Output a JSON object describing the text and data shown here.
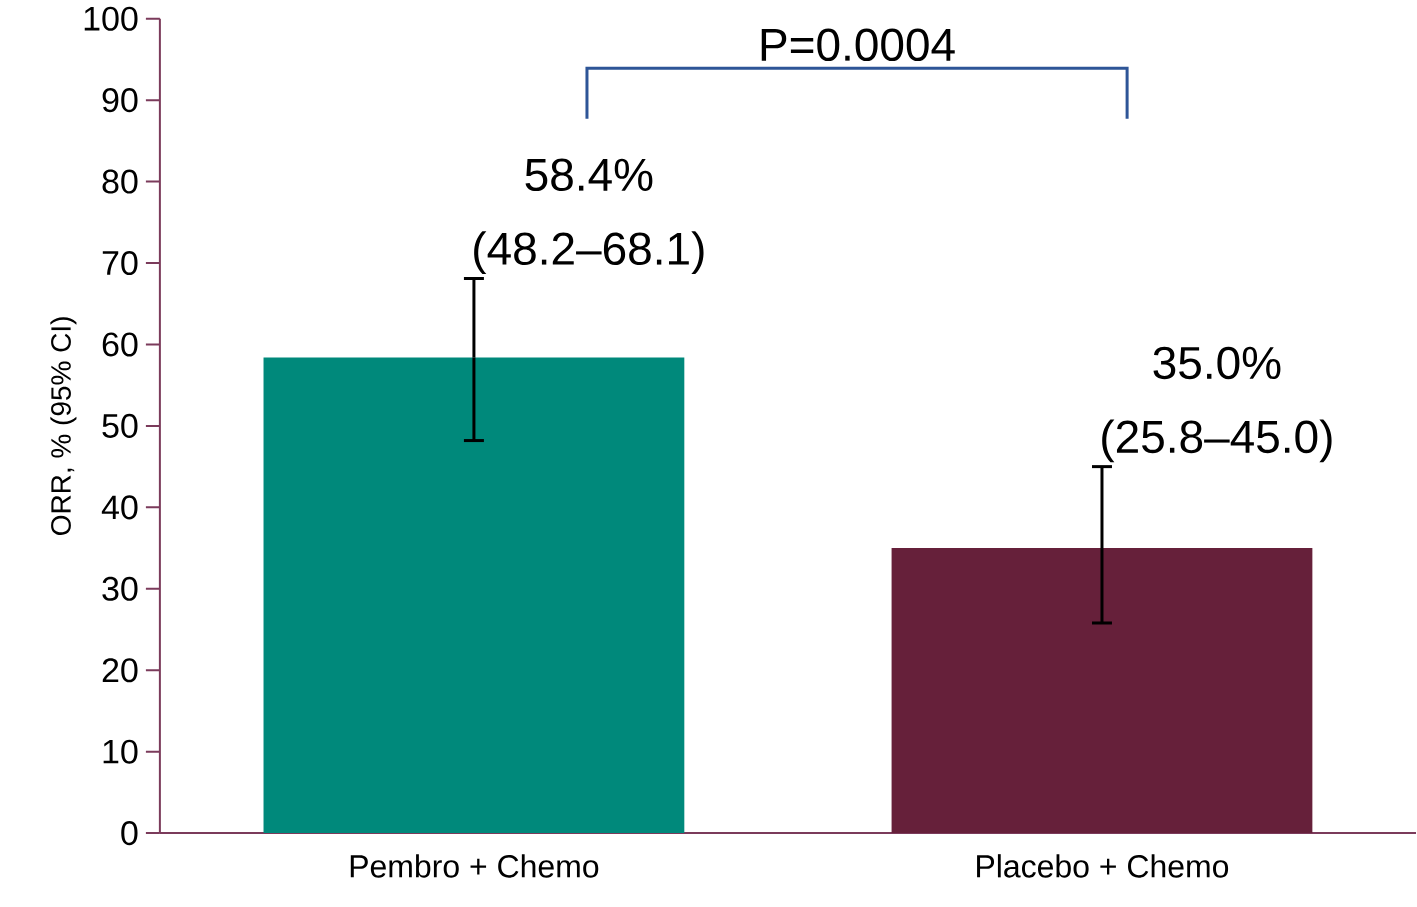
{
  "chart_data": {
    "type": "bar",
    "categories": [
      "Pembro + Chemo",
      "Placebo + Chemo"
    ],
    "values": [
      58.4,
      35.0
    ],
    "colors": [
      "#00897b",
      "#66203a"
    ],
    "errors": [
      [
        48.2,
        68.1
      ],
      [
        25.8,
        45.0
      ]
    ],
    "value_labels": [
      "58.4% (48.2–68.1)",
      "35.0% (25.8–45.0)"
    ],
    "ylabel": "ORR, % (95% CI)",
    "ylim": [
      0,
      100
    ],
    "yticks": [
      0,
      10,
      20,
      30,
      40,
      50,
      60,
      70,
      80,
      90,
      100
    ],
    "annotations": [
      "P=0.0004"
    ]
  }
}
